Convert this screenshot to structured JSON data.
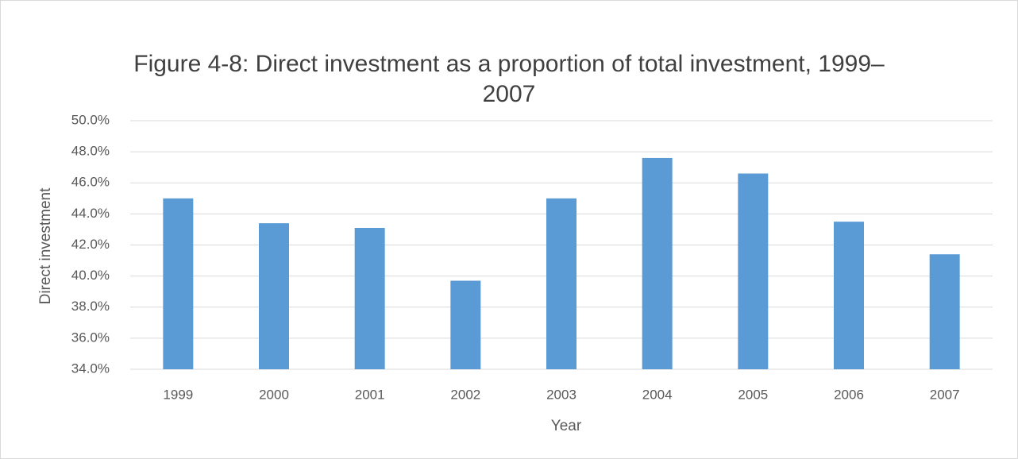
{
  "chart_data": {
    "type": "bar",
    "title": "Figure 4-8: Direct investment as a proportion of total investment, 1999–2007",
    "x_label": "Year",
    "y_label": "Direct investment",
    "categories": [
      "1999",
      "2000",
      "2001",
      "2002",
      "2003",
      "2004",
      "2005",
      "2006",
      "2007"
    ],
    "values": [
      45.0,
      43.4,
      43.1,
      39.7,
      45.0,
      47.6,
      46.6,
      43.5,
      41.4
    ],
    "color": "#5b9bd5",
    "ylim": [
      34,
      50
    ],
    "yticks": [
      {
        "value": 34,
        "label": "34.0%"
      },
      {
        "value": 36,
        "label": "36.0%"
      },
      {
        "value": 38,
        "label": "38.0%"
      },
      {
        "value": 40,
        "label": "40.0%"
      },
      {
        "value": 42,
        "label": "42.0%"
      },
      {
        "value": 44,
        "label": "44.0%"
      },
      {
        "value": 46,
        "label": "46.0%"
      },
      {
        "value": 48,
        "label": "48.0%"
      },
      {
        "value": 50,
        "label": "50.0%"
      }
    ],
    "grid": true
  }
}
